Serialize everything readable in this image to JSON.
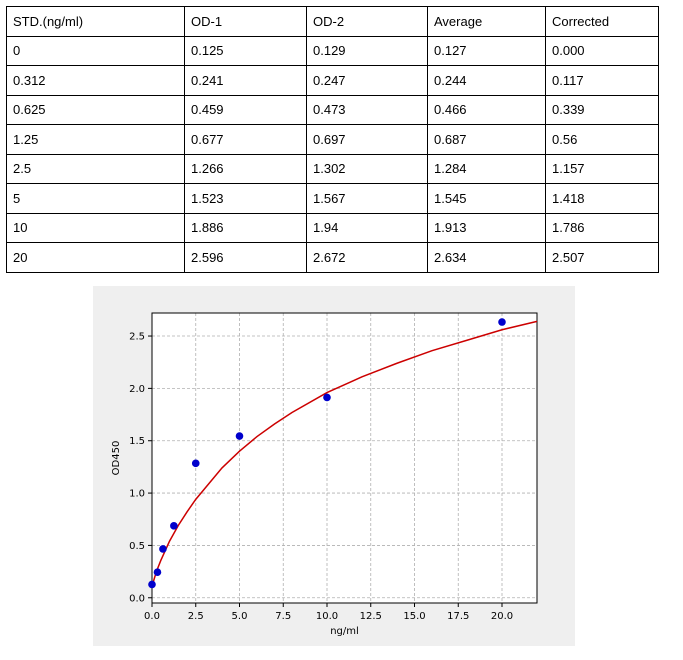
{
  "table": {
    "headers": [
      "STD.(ng/ml)",
      "OD-1",
      "OD-2",
      "Average",
      "Corrected"
    ],
    "rows": [
      [
        "0",
        "0.125",
        "0.129",
        "0.127",
        "0.000"
      ],
      [
        "0.312",
        "0.241",
        "0.247",
        "0.244",
        "0.117"
      ],
      [
        "0.625",
        "0.459",
        "0.473",
        "0.466",
        "0.339"
      ],
      [
        "1.25",
        "0.677",
        "0.697",
        "0.687",
        "0.56"
      ],
      [
        "2.5",
        "1.266",
        "1.302",
        "1.284",
        "1.157"
      ],
      [
        "5",
        "1.523",
        "1.567",
        "1.545",
        "1.418"
      ],
      [
        "10",
        "1.886",
        "1.94",
        "1.913",
        "1.786"
      ],
      [
        "20",
        "2.596",
        "2.672",
        "2.634",
        "2.507"
      ]
    ]
  },
  "chart_data": {
    "type": "scatter",
    "title": "",
    "xlabel": "ng/ml",
    "ylabel": "OD450",
    "xlim": [
      0,
      22
    ],
    "ylim": [
      -0.05,
      2.72
    ],
    "x_ticks": [
      0,
      2.5,
      5,
      7.5,
      10,
      12.5,
      15,
      17.5,
      20
    ],
    "x_tick_labels": [
      "0.0",
      "2.5",
      "5.0",
      "7.5",
      "10.0",
      "12.5",
      "15.0",
      "17.5",
      "20.0"
    ],
    "y_ticks": [
      0,
      0.5,
      1,
      1.5,
      2,
      2.5
    ],
    "y_tick_labels": [
      "0.0",
      "0.5",
      "1.0",
      "1.5",
      "2.0",
      "2.5"
    ],
    "grid": true,
    "points": {
      "x": [
        0,
        0.312,
        0.625,
        1.25,
        2.5,
        5,
        10,
        20
      ],
      "y": [
        0.127,
        0.244,
        0.466,
        0.687,
        1.284,
        1.545,
        1.913,
        2.634
      ],
      "color": "#0000cc"
    },
    "fit_curve": {
      "x": [
        0,
        0.25,
        0.5,
        1,
        1.5,
        2,
        2.5,
        3,
        4,
        5,
        6,
        7,
        8,
        10,
        12,
        14,
        16,
        18,
        20,
        22
      ],
      "y": [
        0.11,
        0.25,
        0.355,
        0.54,
        0.69,
        0.82,
        0.94,
        1.04,
        1.24,
        1.4,
        1.54,
        1.66,
        1.77,
        1.96,
        2.11,
        2.24,
        2.36,
        2.46,
        2.56,
        2.64
      ],
      "color": "#cc0000"
    }
  }
}
